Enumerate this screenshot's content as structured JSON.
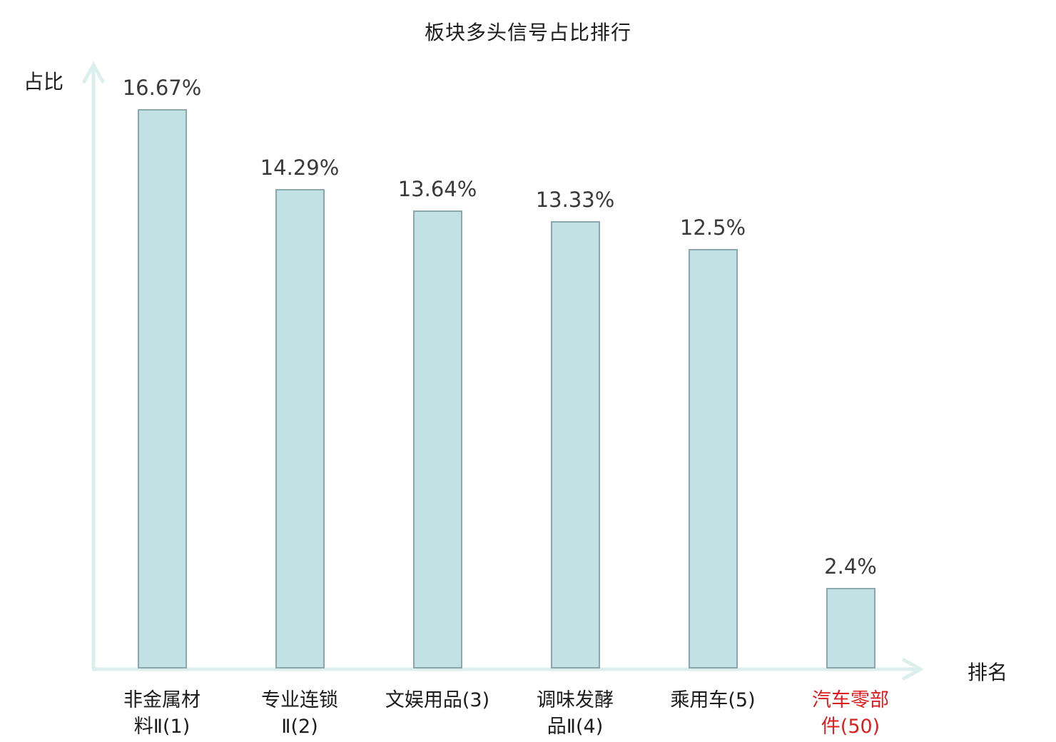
{
  "title": "板块多头信号占比排行",
  "y_axis_label": "占比",
  "x_axis_label": "排名",
  "colors": {
    "bar_fill": "#c1e1e4",
    "bar_border": "#8aa7ad",
    "axis": "#ddefec",
    "text": "#1c1c1c",
    "value_text": "#3a3a3a",
    "highlight_text": "#dd1e1e"
  },
  "chart_data": {
    "type": "bar",
    "title": "板块多头信号占比排行",
    "xlabel": "排名",
    "ylabel": "占比",
    "ylim": [
      0,
      18
    ],
    "grid": false,
    "legend": false,
    "categories": [
      "非金属材料Ⅱ(1)",
      "专业连锁Ⅱ(2)",
      "文娱用品(3)",
      "调味发酵品Ⅱ(4)",
      "乘用车(5)",
      "汽车零部件(50)"
    ],
    "category_display": [
      "非金属材\n料Ⅱ(1)",
      "专业连锁\nⅡ(2)",
      "文娱用品(3)",
      "调味发酵\n品Ⅱ(4)",
      "乘用车(5)",
      "汽车零部\n件(50)"
    ],
    "values": [
      16.67,
      14.29,
      13.64,
      13.33,
      12.5,
      2.4
    ],
    "value_labels": [
      "16.67%",
      "14.29%",
      "13.64%",
      "13.33%",
      "12.5%",
      "2.4%"
    ],
    "ranks": [
      1,
      2,
      3,
      4,
      5,
      50
    ],
    "highlight_index": 5
  }
}
